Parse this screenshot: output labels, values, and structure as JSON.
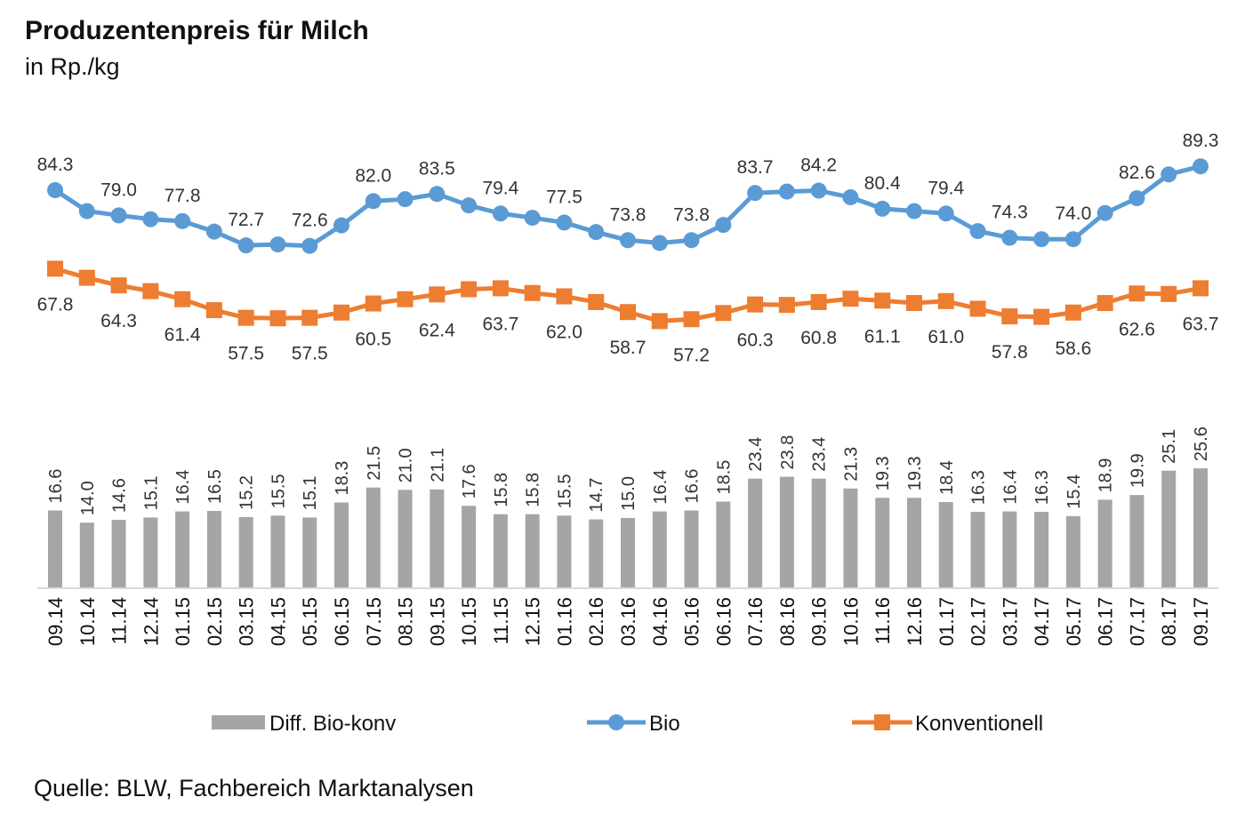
{
  "chart_data": {
    "type": "line+bar",
    "title": "Produzentenpreis für Milch",
    "subtitle": "in Rp./kg",
    "source": "Quelle: BLW, Fachbereich Marktanalysen",
    "categories": [
      "09.14",
      "10.14",
      "11.14",
      "12.14",
      "01.15",
      "02.15",
      "03.15",
      "04.15",
      "05.15",
      "06.15",
      "07.15",
      "08.15",
      "09.15",
      "10.15",
      "11.15",
      "12.15",
      "01.16",
      "02.16",
      "03.16",
      "04.16",
      "05.16",
      "06.16",
      "07.16",
      "08.16",
      "09.16",
      "10.16",
      "11.16",
      "12.16",
      "01.17",
      "02.17",
      "03.17",
      "04.17",
      "05.17",
      "06.17",
      "07.17",
      "08.17",
      "09.17"
    ],
    "series": [
      {
        "name": "Bio",
        "type": "line",
        "color": "#5b9bd5",
        "marker": "circle",
        "labeled_every": 2,
        "values": [
          84.3,
          79.9,
          79.0,
          78.2,
          77.8,
          75.6,
          72.7,
          72.9,
          72.6,
          76.9,
          82.0,
          82.4,
          83.5,
          81.1,
          79.4,
          78.5,
          77.5,
          75.5,
          73.8,
          73.2,
          73.8,
          77.0,
          83.7,
          84.0,
          84.2,
          82.8,
          80.4,
          79.9,
          79.4,
          75.7,
          74.3,
          74.0,
          74.0,
          79.5,
          82.6,
          87.6,
          89.3
        ]
      },
      {
        "name": "Konventionell",
        "type": "line",
        "color": "#ed7d31",
        "marker": "square",
        "labeled_every": 2,
        "values": [
          67.8,
          65.9,
          64.3,
          63.1,
          61.4,
          59.1,
          57.5,
          57.4,
          57.5,
          58.6,
          60.5,
          61.4,
          62.4,
          63.5,
          63.7,
          62.7,
          62.0,
          60.8,
          58.7,
          56.8,
          57.2,
          58.5,
          60.3,
          60.2,
          60.8,
          61.5,
          61.1,
          60.6,
          61.0,
          59.4,
          57.8,
          57.7,
          58.6,
          60.6,
          62.6,
          62.5,
          63.7
        ]
      },
      {
        "name": "Diff. Bio-konv",
        "type": "bar",
        "color": "#a5a5a5",
        "values": [
          16.6,
          14.0,
          14.6,
          15.1,
          16.4,
          16.5,
          15.2,
          15.5,
          15.1,
          18.3,
          21.5,
          21.0,
          21.1,
          17.6,
          15.8,
          15.8,
          15.5,
          14.7,
          15.0,
          16.4,
          16.6,
          18.5,
          23.4,
          23.8,
          23.4,
          21.3,
          19.3,
          19.3,
          18.4,
          16.3,
          16.4,
          16.3,
          15.4,
          18.9,
          19.9,
          25.1,
          25.6
        ]
      }
    ],
    "legend": [
      "Diff. Bio-konv",
      "Bio",
      "Konventionell"
    ],
    "legend_position": "bottom",
    "grid": false
  }
}
